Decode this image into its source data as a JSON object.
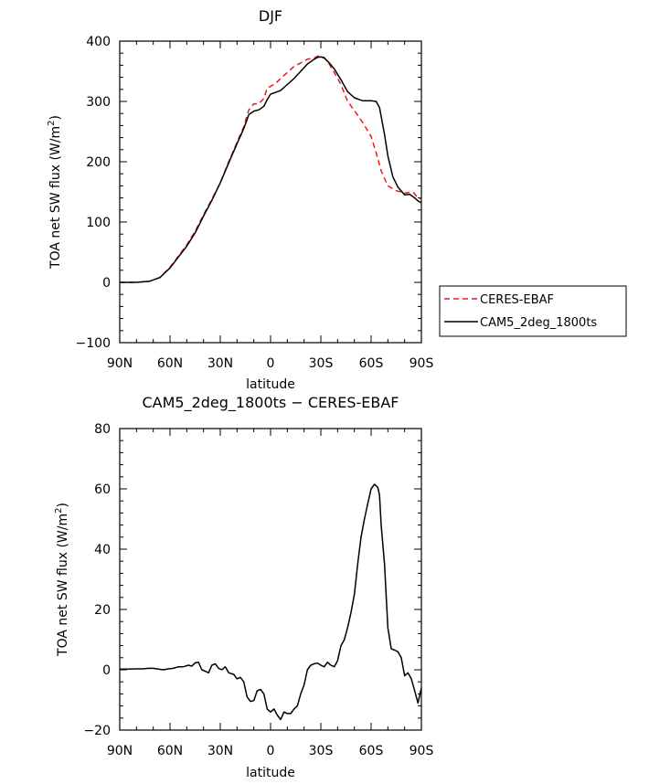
{
  "chart_data": [
    {
      "type": "line",
      "title": "DJF",
      "xlabel": "latitude",
      "ylabel": "TOA net SW flux (W/m²)",
      "ylabel_parts": [
        "TOA net SW flux (W/m",
        "2",
        ")"
      ],
      "xlim": [
        90,
        -90
      ],
      "ylim": [
        -100,
        400
      ],
      "xtick_values": [
        90,
        60,
        30,
        0,
        -30,
        -60,
        -90
      ],
      "xtick_labels": [
        "90N",
        "60N",
        "30N",
        "0",
        "30S",
        "60S",
        "90S"
      ],
      "ytick_values": [
        -100,
        0,
        100,
        200,
        300,
        400
      ],
      "ytick_labels": [
        "−100",
        "0",
        "100",
        "200",
        "300",
        "400"
      ],
      "legend_position": "right",
      "series": [
        {
          "name": "CERES-EBAF",
          "color": "#e41a1c",
          "dash": true,
          "x": [
            90,
            80,
            72,
            66,
            60,
            50,
            45,
            40,
            35,
            30,
            25,
            20,
            16,
            13,
            10,
            7,
            4,
            2,
            0,
            -3,
            -6,
            -10,
            -14,
            -18,
            -22,
            -26,
            -28,
            -30,
            -32,
            -35,
            -38,
            -42,
            -46,
            -50,
            -55,
            -60,
            -63,
            -66,
            -70,
            -75,
            -80,
            -85,
            -88,
            -90
          ],
          "y": [
            0,
            0,
            2,
            8,
            25,
            62,
            85,
            112,
            138,
            165,
            200,
            232,
            258,
            286,
            296,
            296,
            305,
            322,
            325,
            330,
            338,
            348,
            358,
            364,
            370,
            372,
            375,
            375,
            373,
            362,
            348,
            328,
            300,
            285,
            265,
            242,
            215,
            185,
            160,
            152,
            148,
            150,
            140,
            138
          ]
        },
        {
          "name": "CAM5_2deg_1800ts",
          "color": "#000000",
          "dash": false,
          "x": [
            90,
            80,
            72,
            66,
            60,
            50,
            45,
            40,
            35,
            30,
            25,
            20,
            16,
            13,
            10,
            7,
            4,
            2,
            0,
            -3,
            -6,
            -10,
            -14,
            -18,
            -22,
            -26,
            -28,
            -30,
            -32,
            -35,
            -38,
            -42,
            -46,
            -50,
            -55,
            -60,
            -63,
            -65,
            -68,
            -70,
            -73,
            -76,
            -80,
            -83,
            -86,
            -88,
            -90
          ],
          "y": [
            0,
            0,
            2,
            8,
            24,
            60,
            82,
            110,
            136,
            165,
            198,
            230,
            255,
            278,
            284,
            286,
            292,
            303,
            312,
            315,
            318,
            328,
            338,
            350,
            362,
            370,
            373,
            374,
            372,
            364,
            354,
            336,
            316,
            306,
            301,
            301,
            300,
            290,
            245,
            210,
            175,
            158,
            145,
            146,
            140,
            135,
            132
          ]
        }
      ]
    },
    {
      "type": "line",
      "title": "CAM5_2deg_1800ts − CERES-EBAF",
      "xlabel": "latitude",
      "ylabel": "TOA net SW flux (W/m²)",
      "ylabel_parts": [
        "TOA net SW flux (W/m",
        "2",
        ")"
      ],
      "xlim": [
        90,
        -90
      ],
      "ylim": [
        -20,
        80
      ],
      "xtick_values": [
        90,
        60,
        30,
        0,
        -30,
        -60,
        -90
      ],
      "xtick_labels": [
        "90N",
        "60N",
        "30N",
        "0",
        "30S",
        "60S",
        "90S"
      ],
      "ytick_values": [
        -20,
        0,
        20,
        40,
        60,
        80
      ],
      "ytick_labels": [
        "−20",
        "0",
        "20",
        "40",
        "60",
        "80"
      ],
      "series": [
        {
          "name": "",
          "color": "#000000",
          "dash": false,
          "x": [
            90,
            86,
            80,
            76,
            73,
            70,
            67,
            64,
            61,
            58,
            55,
            52,
            49,
            47,
            45,
            43,
            41,
            39,
            37,
            35,
            33,
            31,
            29,
            27,
            25,
            22,
            20,
            18,
            16,
            14,
            12,
            10,
            8,
            6,
            4,
            2,
            0,
            -2,
            -4,
            -6,
            -8,
            -10,
            -12,
            -14,
            -16,
            -18,
            -20,
            -22,
            -24,
            -26,
            -28,
            -30,
            -32,
            -34,
            -36,
            -38,
            -40,
            -42,
            -44,
            -46,
            -48,
            -50,
            -52,
            -54,
            -56,
            -58,
            -60,
            -62,
            -63,
            -64,
            -65,
            -66,
            -68,
            -70,
            -72,
            -74,
            -76,
            -78,
            -80,
            -82,
            -84,
            -86,
            -88,
            -90
          ],
          "y": [
            0.2,
            0.2,
            0.3,
            0.3,
            0.5,
            0.5,
            0.2,
            0,
            0.3,
            0.5,
            1,
            1,
            1.5,
            1.2,
            2.3,
            2.5,
            0,
            -0.5,
            -1,
            1.5,
            2,
            0.5,
            0,
            1,
            -1,
            -1.5,
            -3,
            -2.5,
            -4,
            -9,
            -10.5,
            -10.2,
            -7,
            -6.5,
            -8,
            -13,
            -14,
            -13,
            -15,
            -16.5,
            -14,
            -14.5,
            -14.5,
            -13,
            -12,
            -8,
            -5,
            0,
            1.5,
            2,
            2.2,
            1.5,
            1,
            2.5,
            1.5,
            1,
            3,
            8,
            10,
            14,
            19,
            25,
            35,
            44,
            50,
            55,
            60,
            61.5,
            61,
            60.5,
            58,
            48,
            35,
            14,
            7,
            6.5,
            6,
            4,
            -2,
            -1,
            -3,
            -7,
            -11,
            -6
          ]
        }
      ]
    }
  ]
}
